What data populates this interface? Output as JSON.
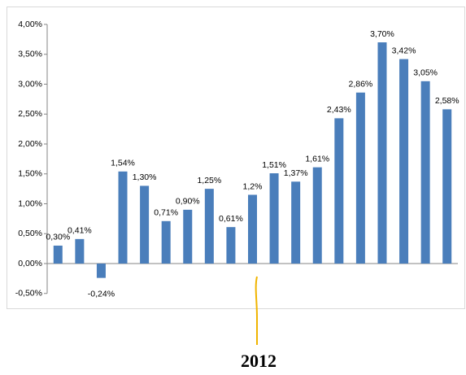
{
  "chart_data": {
    "type": "bar",
    "categories": [
      null,
      null,
      null,
      null,
      null,
      null,
      null,
      null,
      null,
      null,
      null,
      null,
      null,
      null,
      null,
      null,
      null,
      null,
      null
    ],
    "values": [
      0.3,
      0.41,
      -0.24,
      1.54,
      1.3,
      0.71,
      0.9,
      1.25,
      0.61,
      1.15,
      1.51,
      1.37,
      1.61,
      2.43,
      2.86,
      3.7,
      3.42,
      3.05,
      2.58
    ],
    "value_labels": [
      "0,30%",
      "0,41%",
      "-0,24%",
      "1,54%",
      "1,30%",
      "0,71%",
      "0,90%",
      "1,25%",
      "0,61%",
      "1,2%",
      "1,51%",
      "1,37%",
      "1,61%",
      "2,43%",
      "2,86%",
      "3,70%",
      "3,42%",
      "3,05%",
      "2,58%"
    ],
    "color": "#4a7ebb",
    "ylim": [
      -0.5,
      4.0
    ],
    "yticks": [
      {
        "value": -0.5,
        "label": "-0,50%"
      },
      {
        "value": 0,
        "label": "0,00%"
      },
      {
        "value": 0.5,
        "label": "0,50%"
      },
      {
        "value": 1.0,
        "label": "1,00%"
      },
      {
        "value": 1.5,
        "label": "1,50%"
      },
      {
        "value": 2.0,
        "label": "2,00%"
      },
      {
        "value": 2.5,
        "label": "2,50%"
      },
      {
        "value": 3.0,
        "label": "3,00%"
      },
      {
        "value": 3.5,
        "label": "3,50%"
      },
      {
        "value": 4.0,
        "label": "4,00%"
      }
    ],
    "annotation": "2012"
  }
}
